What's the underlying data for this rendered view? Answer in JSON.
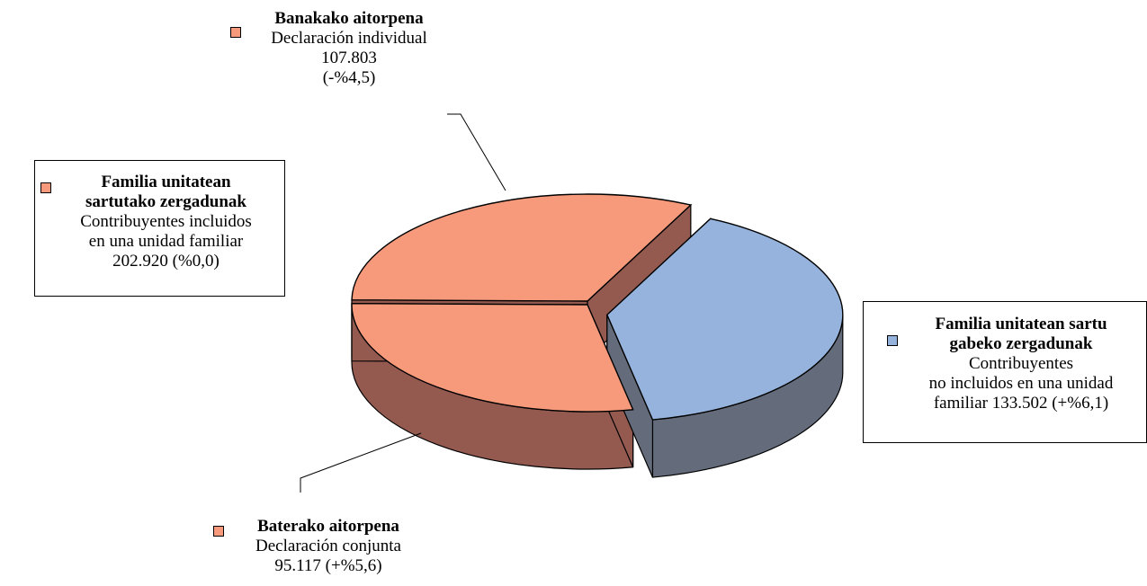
{
  "chart_data": {
    "type": "pie",
    "style": "3d-exploded",
    "legend_placement": "callouts",
    "slices": [
      {
        "id": "banakako",
        "group": "familia",
        "title": "Banakako aitorpena",
        "lines": [
          "Declaración individual",
          "107.803",
          "(-%4,5)"
        ],
        "value": 107803,
        "change": "-%4,5",
        "color": "#F69A7B",
        "side_color": "#945A50"
      },
      {
        "id": "baterako",
        "group": "familia",
        "title": "Baterako aitorpena",
        "lines": [
          "Declaración conjunta",
          "95.117 (+%5,6)"
        ],
        "value": 95117,
        "change": "+%5,6",
        "color": "#F69A7B",
        "side_color": "#945A50"
      },
      {
        "id": "gabeko",
        "group": "ez-familia",
        "title_lines": [
          "Familia unitatean sartu",
          "gabeko zergadunak"
        ],
        "lines": [
          "Contribuyentes",
          "no incluidos en una unidad",
          "familiar 133.502 (+%6,1)"
        ],
        "value": 133502,
        "change": "+%6,1",
        "color": "#95B3DC",
        "side_color": "#646C7C"
      }
    ],
    "groups": [
      {
        "id": "familia",
        "title_lines": [
          "Familia unitatean",
          "sartutako zergadunak"
        ],
        "lines": [
          "Contribuyentes incluidos",
          "en una unidad familiar",
          "202.920 (%0,0)"
        ],
        "value": 202920,
        "change": "%0,0",
        "color": "#F69A7B"
      }
    ]
  }
}
